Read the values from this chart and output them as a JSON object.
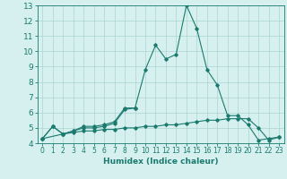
{
  "xlabel": "Humidex (Indice chaleur)",
  "x": [
    0,
    1,
    2,
    3,
    4,
    5,
    6,
    7,
    8,
    9,
    10,
    11,
    12,
    13,
    14,
    15,
    16,
    17,
    18,
    19,
    20,
    21,
    22,
    23
  ],
  "line1": [
    4.3,
    5.1,
    4.6,
    4.8,
    5.1,
    5.1,
    5.2,
    5.4,
    6.3,
    6.3,
    8.8,
    10.4,
    9.5,
    9.8,
    13.0,
    11.5,
    8.8,
    7.8,
    5.8,
    5.8,
    5.2,
    4.2,
    4.3,
    4.4
  ],
  "line2": [
    4.3,
    5.1,
    4.6,
    4.8,
    5.0,
    5.0,
    5.1,
    5.3,
    6.2,
    6.3,
    null,
    null,
    null,
    null,
    null,
    null,
    null,
    null,
    null,
    null,
    null,
    null,
    null,
    null
  ],
  "line3": [
    4.3,
    null,
    4.6,
    4.7,
    4.8,
    4.8,
    4.9,
    4.9,
    5.0,
    5.0,
    5.1,
    5.1,
    5.2,
    5.2,
    5.3,
    5.4,
    5.5,
    5.5,
    5.6,
    5.6,
    5.6,
    5.0,
    4.2,
    4.4
  ],
  "line_color": "#1a7a6e",
  "bg_color": "#d6f0ef",
  "grid_color": "#aad4d0",
  "ylim": [
    4,
    13
  ],
  "xlim": [
    -0.5,
    23.5
  ]
}
